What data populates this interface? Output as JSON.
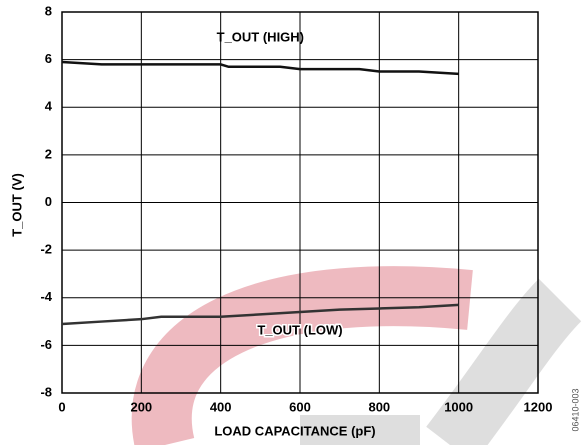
{
  "chart_data": {
    "type": "line",
    "xlabel": "LOAD CAPACITANCE (pF)",
    "ylabel": "T_OUT (V)",
    "side_note": "06410-003",
    "series": [
      {
        "name": "T_OUT (HIGH)",
        "color": "#111111",
        "x": [
          0,
          100,
          400,
          420,
          550,
          600,
          750,
          800,
          900,
          1000
        ],
        "values": [
          5.9,
          5.8,
          5.8,
          5.7,
          5.7,
          5.6,
          5.6,
          5.5,
          5.5,
          5.4
        ]
      },
      {
        "name": "T_OUT (LOW)",
        "color": "#333333",
        "x": [
          0,
          100,
          200,
          250,
          400,
          500,
          600,
          700,
          800,
          900,
          1000
        ],
        "values": [
          -5.1,
          -5.0,
          -4.9,
          -4.8,
          -4.8,
          -4.7,
          -4.6,
          -4.5,
          -4.45,
          -4.4,
          -4.3
        ]
      }
    ],
    "xlim": [
      0,
      1200
    ],
    "xticks": [
      0,
      200,
      400,
      600,
      800,
      1000,
      1200
    ],
    "ylim": [
      -8,
      8
    ],
    "yticks": [
      8,
      6,
      4,
      2,
      0,
      -2,
      -4,
      -6,
      -8
    ],
    "grid": true
  }
}
